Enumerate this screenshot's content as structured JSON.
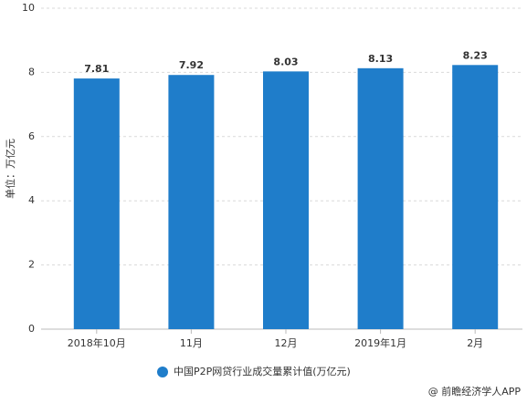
{
  "chart_data": {
    "type": "bar",
    "y_label": "单位：万亿元",
    "categories": [
      "2018年10月",
      "11月",
      "12月",
      "2019年1月",
      "2月"
    ],
    "series": [
      {
        "name": "中国P2P网贷行业成交量累计值(万亿元)",
        "color": "#1f7dca",
        "values": [
          7.81,
          7.92,
          8.03,
          8.13,
          8.23
        ]
      }
    ],
    "ylim": [
      0,
      10
    ],
    "yticks": [
      0,
      2,
      4,
      6,
      8,
      10
    ],
    "grid": true,
    "source": "@ 前瞻经济学人APP"
  }
}
